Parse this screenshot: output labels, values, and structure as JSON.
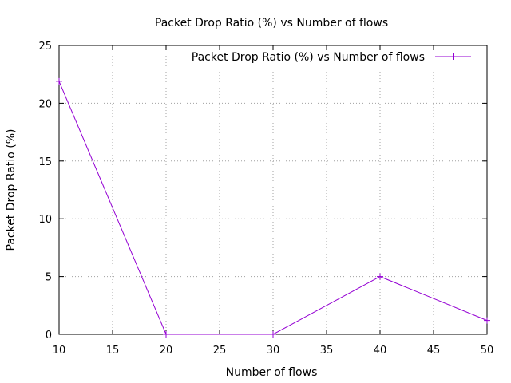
{
  "chart_data": {
    "type": "line",
    "title": "Packet Drop Ratio (%) vs Number of flows",
    "xlabel": "Number of flows",
    "ylabel": "Packet Drop Ratio (%)",
    "xlim": [
      10,
      50
    ],
    "ylim": [
      0,
      25
    ],
    "xticks": [
      10,
      15,
      20,
      25,
      30,
      35,
      40,
      45,
      50
    ],
    "yticks": [
      0,
      5,
      10,
      15,
      20,
      25
    ],
    "grid": true,
    "legend_position": "top-right",
    "series": [
      {
        "name": "Packet Drop Ratio (%) vs Number of flows",
        "color": "#9400d3",
        "marker": "plus",
        "x": [
          10,
          20,
          30,
          40,
          50
        ],
        "y": [
          21.9,
          0,
          0,
          5,
          1.2
        ]
      }
    ]
  }
}
